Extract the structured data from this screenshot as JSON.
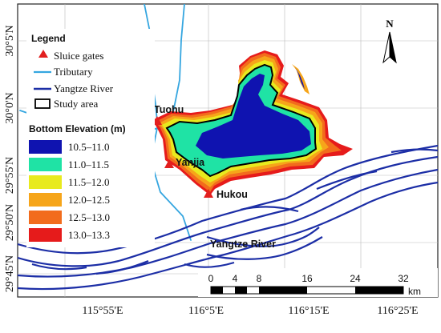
{
  "colors": {
    "tributary": "#35a6e0",
    "yangtze": "#1c2ea6",
    "sluice": "#e21f1f",
    "elev": [
      "#0f13b0",
      "#1fe3a5",
      "#e8ea1e",
      "#f6a51a",
      "#f26c1d",
      "#e61b1b"
    ]
  },
  "legend": {
    "title": "Legend",
    "sluice": "Sluice gates",
    "tributary": "Tributary",
    "yangtze": "Yangtze River",
    "study": "Study area",
    "elev_title": "Bottom Elevation (m)",
    "classes": [
      "10.5–11.0",
      "11.0–11.5",
      "11.5–12.0",
      "12.0–12.5",
      "12.5–13.0",
      "13.0–13.3"
    ]
  },
  "places": {
    "tuohu": "Tuohu",
    "yanjia": "Yanjia",
    "hukou": "Hukou",
    "river": "Yangtze River"
  },
  "north": "N",
  "axes": {
    "lat": [
      "30°5'N",
      "30°0'N",
      "29°55'N",
      "29°50'N",
      "29°45'N"
    ],
    "lon": [
      "115°55'E",
      "116°5'E",
      "116°15'E",
      "116°25'E"
    ]
  },
  "scalebar": {
    "ticks": [
      "0",
      "4",
      "8",
      "16",
      "24",
      "32"
    ],
    "unit": "km"
  }
}
